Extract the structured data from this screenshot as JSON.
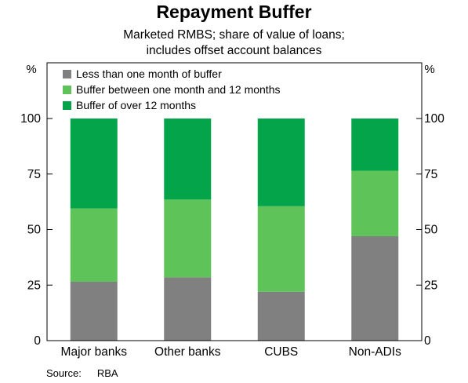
{
  "chart_data": {
    "type": "bar",
    "stacked": true,
    "title": "Repayment Buffer",
    "subtitle": [
      "Marketed RMBS; share of value of loans;",
      "includes offset account balances"
    ],
    "y_unit_label": "%",
    "ylim": [
      0,
      100
    ],
    "yticks": [
      0,
      25,
      50,
      75,
      100
    ],
    "grid": false,
    "legend_position": "top-left",
    "categories": [
      "Major banks",
      "Other banks",
      "CUBS",
      "Non-ADIs"
    ],
    "series": [
      {
        "name": "Less than one month of buffer",
        "color": "#808080",
        "values": [
          26.5,
          28.5,
          22,
          47
        ]
      },
      {
        "name": "Buffer between one month and 12 months",
        "color": "#5ec45a",
        "values": [
          33,
          35,
          38.5,
          29.5
        ]
      },
      {
        "name": "Buffer of over 12 months",
        "color": "#04a54a",
        "values": [
          40.5,
          36.5,
          39.5,
          23.5
        ]
      }
    ]
  },
  "source": {
    "label": "Source:",
    "name": "RBA"
  }
}
